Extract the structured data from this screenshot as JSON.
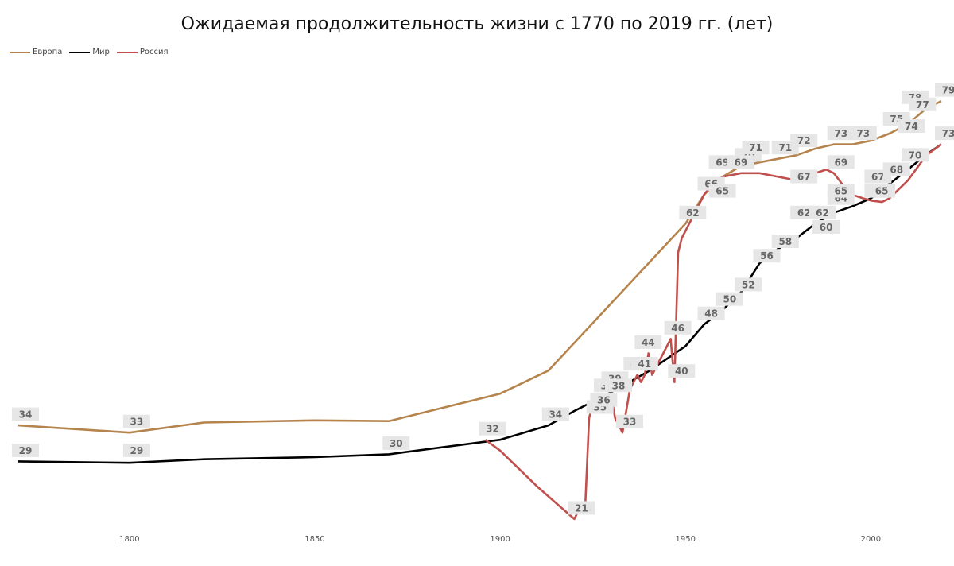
{
  "chart_data": {
    "type": "line",
    "title": "Ожидаемая продолжительность жизни с 1770 по 2019 гг. (лет)",
    "xlabel": "",
    "ylabel": "",
    "xlim": [
      1770,
      2019
    ],
    "ylim": [
      20,
      82
    ],
    "x_ticks": [
      1800,
      1850,
      1900,
      1950,
      2000
    ],
    "grid": false,
    "legend_position": "top-left",
    "series": [
      {
        "name": "Европа",
        "color": "#b5844c",
        "points": [
          [
            1770,
            34
          ],
          [
            1800,
            33
          ],
          [
            1820,
            34.4
          ],
          [
            1850,
            34.7
          ],
          [
            1870,
            34.6
          ],
          [
            1900,
            38.4
          ],
          [
            1913,
            41.6
          ],
          [
            1950,
            62
          ],
          [
            1955,
            66
          ],
          [
            1960,
            68.5
          ],
          [
            1965,
            70
          ],
          [
            1970,
            70.5
          ],
          [
            1975,
            71
          ],
          [
            1980,
            71.5
          ],
          [
            1985,
            72.4
          ],
          [
            1990,
            73
          ],
          [
            1995,
            73
          ],
          [
            2000,
            73.5
          ],
          [
            2005,
            74.5
          ],
          [
            2010,
            75.8
          ],
          [
            2015,
            78
          ],
          [
            2019,
            79
          ]
        ],
        "labels": [
          [
            1770,
            34
          ],
          [
            1800,
            33
          ],
          [
            1950,
            62
          ],
          [
            1955,
            66
          ],
          [
            1965,
            70
          ],
          [
            1975,
            71
          ],
          [
            1990,
            73
          ],
          [
            1995,
            73
          ],
          [
            2005,
            75
          ],
          [
            2010,
            78
          ],
          [
            2019,
            79
          ]
        ]
      },
      {
        "name": "Мир",
        "color": "#000000",
        "points": [
          [
            1770,
            29
          ],
          [
            1800,
            28.8
          ],
          [
            1820,
            29.3
          ],
          [
            1850,
            29.6
          ],
          [
            1870,
            30
          ],
          [
            1900,
            32
          ],
          [
            1913,
            34
          ],
          [
            1920,
            36
          ],
          [
            1930,
            38.6
          ],
          [
            1940,
            41.5
          ],
          [
            1950,
            45
          ],
          [
            1955,
            48
          ],
          [
            1960,
            50
          ],
          [
            1965,
            52.5
          ],
          [
            1970,
            56.5
          ],
          [
            1975,
            58.5
          ],
          [
            1980,
            60
          ],
          [
            1985,
            62
          ],
          [
            1990,
            63.5
          ],
          [
            1995,
            64.4
          ],
          [
            2000,
            65.5
          ],
          [
            2005,
            67.5
          ],
          [
            2010,
            69.5
          ],
          [
            2015,
            71.6
          ],
          [
            2019,
            73
          ]
        ],
        "labels": [
          [
            1770,
            29
          ],
          [
            1800,
            29
          ],
          [
            1870,
            30
          ],
          [
            1913,
            34
          ],
          [
            1955,
            48
          ],
          [
            1960,
            50
          ],
          [
            1965,
            52
          ],
          [
            1970,
            56
          ],
          [
            1975,
            58
          ],
          [
            1980,
            62
          ],
          [
            1990,
            64
          ],
          [
            2000,
            67
          ],
          [
            2005,
            68
          ],
          [
            2010,
            70
          ],
          [
            2019,
            73
          ]
        ]
      },
      {
        "name": "Россия",
        "color": "#c0504d",
        "points": [
          [
            1896,
            32
          ],
          [
            1900,
            30.5
          ],
          [
            1910,
            25.5
          ],
          [
            1920,
            21
          ],
          [
            1922,
            23
          ],
          [
            1923,
            23.5
          ],
          [
            1924,
            35
          ],
          [
            1925,
            37
          ],
          [
            1926,
            37.5
          ],
          [
            1927,
            36.5
          ],
          [
            1928,
            38
          ],
          [
            1929,
            37
          ],
          [
            1930,
            38
          ],
          [
            1931,
            35
          ],
          [
            1932,
            34
          ],
          [
            1933,
            33
          ],
          [
            1934,
            36
          ],
          [
            1935,
            39
          ],
          [
            1936,
            40
          ],
          [
            1937,
            41
          ],
          [
            1938,
            40
          ],
          [
            1939,
            41
          ],
          [
            1940,
            44
          ],
          [
            1941,
            41
          ],
          [
            1942,
            42
          ],
          [
            1943,
            43
          ],
          [
            1944,
            44
          ],
          [
            1945,
            45
          ],
          [
            1946,
            46
          ],
          [
            1947,
            40
          ],
          [
            1948,
            58
          ],
          [
            1949,
            60
          ],
          [
            1950,
            61
          ],
          [
            1952,
            63
          ],
          [
            1953,
            64
          ],
          [
            1955,
            66
          ],
          [
            1958,
            68
          ],
          [
            1960,
            68.5
          ],
          [
            1965,
            69
          ],
          [
            1970,
            69
          ],
          [
            1975,
            68.5
          ],
          [
            1980,
            68
          ],
          [
            1985,
            69
          ],
          [
            1988,
            69.5
          ],
          [
            1990,
            69
          ],
          [
            1993,
            67
          ],
          [
            1995,
            66
          ],
          [
            1998,
            65.5
          ],
          [
            2000,
            65.2
          ],
          [
            2003,
            65
          ],
          [
            2005,
            65.5
          ],
          [
            2010,
            68
          ],
          [
            2015,
            71.5
          ],
          [
            2019,
            73
          ]
        ],
        "labels": [
          [
            1896,
            32
          ],
          [
            1920,
            21
          ],
          [
            1925,
            35
          ],
          [
            1926,
            36
          ],
          [
            1927,
            38
          ],
          [
            1929,
            39
          ],
          [
            1930,
            38
          ],
          [
            1933,
            33
          ],
          [
            1935,
            41
          ],
          [
            1937,
            41
          ],
          [
            1938,
            44
          ],
          [
            1946,
            46
          ],
          [
            1947,
            40
          ],
          [
            1958,
            69
          ],
          [
            1958,
            65
          ],
          [
            1963,
            69
          ],
          [
            1967,
            71
          ],
          [
            1980,
            67
          ],
          [
            1980,
            72
          ],
          [
            1985,
            62
          ],
          [
            1986,
            60
          ],
          [
            1990,
            69
          ],
          [
            1990,
            65
          ],
          [
            1990,
            73
          ],
          [
            1996,
            73
          ],
          [
            2000,
            65
          ],
          [
            2001,
            65
          ],
          [
            2009,
            74
          ],
          [
            2012,
            77
          ]
        ]
      }
    ]
  }
}
